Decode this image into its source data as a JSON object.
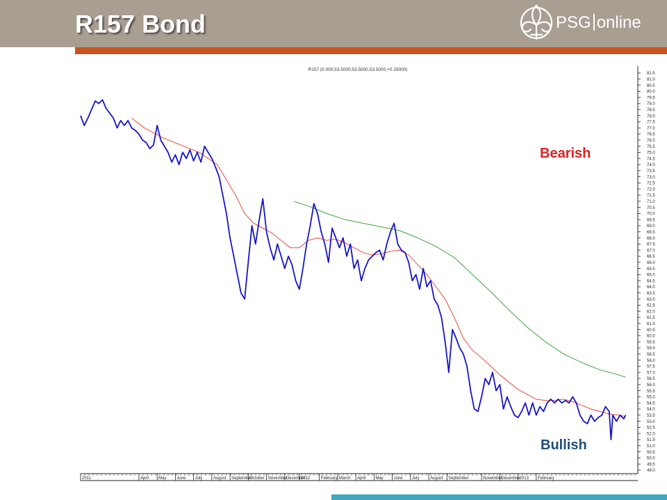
{
  "slide": {
    "title": "R157 Bond",
    "logo_brand": "PSG",
    "logo_suffix": "online"
  },
  "colors": {
    "header": "#a89e92",
    "accent": "#c8551e",
    "price": "#1414c8",
    "ma_short": "#e84a3c",
    "ma_long": "#3aa63a",
    "bearish": "#e02020",
    "bullish": "#1f4e79",
    "bottom_bar": "#3fa8c0"
  },
  "annotations": {
    "bearish": "Bearish",
    "bullish": "Bullish"
  },
  "chart_data": {
    "type": "line",
    "title": "R157 (0.000,53.5000,53.5000,53.5000,+0.25000)",
    "ylim": [
      49.0,
      81.5
    ],
    "y_ticks": [
      49.0,
      49.5,
      50.0,
      50.5,
      51.0,
      51.5,
      52.0,
      52.5,
      53.0,
      53.5,
      54.0,
      54.5,
      55.0,
      55.5,
      56.0,
      56.5,
      57.0,
      57.5,
      58.0,
      58.5,
      59.0,
      59.5,
      60.0,
      60.5,
      61.0,
      61.5,
      62.0,
      62.5,
      63.0,
      63.5,
      64.0,
      64.5,
      65.0,
      65.5,
      66.0,
      66.5,
      67.0,
      67.5,
      68.0,
      68.5,
      69.0,
      69.5,
      70.0,
      70.5,
      71.0,
      71.5,
      72.0,
      72.5,
      73.0,
      73.5,
      74.0,
      74.5,
      75.0,
      75.5,
      76.0,
      76.5,
      77.0,
      77.5,
      78.0,
      78.5,
      79.0,
      79.5,
      80.0,
      80.5,
      81.0,
      81.5
    ],
    "x_ticks": [
      {
        "label": "2011",
        "x": 0.0
      },
      {
        "label": "April",
        "x": 3.2
      },
      {
        "label": "May",
        "x": 4.2
      },
      {
        "label": "June",
        "x": 5.2
      },
      {
        "label": "July",
        "x": 6.2
      },
      {
        "label": "August",
        "x": 7.2
      },
      {
        "label": "September",
        "x": 8.2
      },
      {
        "label": "October",
        "x": 9.2
      },
      {
        "label": "November",
        "x": 10.2
      },
      {
        "label": "December",
        "x": 11.2
      },
      {
        "label": "2012",
        "x": 12.0
      },
      {
        "label": "February",
        "x": 13.1
      },
      {
        "label": "March",
        "x": 14.1
      },
      {
        "label": "April",
        "x": 15.1
      },
      {
        "label": "May",
        "x": 16.1
      },
      {
        "label": "June",
        "x": 17.1
      },
      {
        "label": "July",
        "x": 18.1
      },
      {
        "label": "August",
        "x": 19.1
      },
      {
        "label": "September",
        "x": 20.1
      },
      {
        "label": "November",
        "x": 22.0
      },
      {
        "label": "December",
        "x": 23.0
      },
      {
        "label": "2013",
        "x": 24.0
      },
      {
        "label": "February",
        "x": 25.0
      }
    ],
    "series": [
      {
        "values": [
          [
            0.0,
            78.0
          ],
          [
            0.2,
            77.2
          ],
          [
            0.4,
            77.8
          ],
          [
            0.6,
            78.5
          ],
          [
            0.8,
            79.2
          ],
          [
            1.0,
            79.0
          ],
          [
            1.2,
            79.3
          ],
          [
            1.4,
            78.6
          ],
          [
            1.6,
            78.2
          ],
          [
            1.8,
            77.8
          ],
          [
            2.0,
            77.0
          ],
          [
            2.2,
            77.6
          ],
          [
            2.4,
            77.2
          ],
          [
            2.6,
            77.6
          ],
          [
            2.8,
            77.0
          ],
          [
            3.0,
            76.8
          ],
          [
            3.2,
            76.5
          ],
          [
            3.4,
            76.0
          ],
          [
            3.6,
            75.8
          ],
          [
            3.8,
            75.3
          ],
          [
            4.0,
            75.6
          ],
          [
            4.2,
            77.2
          ],
          [
            4.4,
            76.0
          ],
          [
            4.6,
            75.5
          ],
          [
            4.8,
            75.0
          ],
          [
            5.0,
            74.2
          ],
          [
            5.2,
            74.8
          ],
          [
            5.4,
            74.0
          ],
          [
            5.6,
            75.0
          ],
          [
            5.8,
            74.5
          ],
          [
            6.0,
            75.2
          ],
          [
            6.2,
            74.3
          ],
          [
            6.4,
            75.0
          ],
          [
            6.6,
            74.2
          ],
          [
            6.8,
            75.5
          ],
          [
            7.0,
            75.0
          ],
          [
            7.2,
            74.5
          ],
          [
            7.4,
            73.8
          ],
          [
            7.6,
            73.0
          ],
          [
            7.8,
            71.5
          ],
          [
            8.0,
            70.0
          ],
          [
            8.2,
            68.0
          ],
          [
            8.4,
            66.5
          ],
          [
            8.6,
            65.0
          ],
          [
            8.8,
            63.5
          ],
          [
            9.0,
            63.0
          ],
          [
            9.2,
            66.0
          ],
          [
            9.4,
            69.0
          ],
          [
            9.6,
            67.5
          ],
          [
            9.8,
            69.5
          ],
          [
            10.0,
            71.2
          ],
          [
            10.2,
            68.5
          ],
          [
            10.4,
            67.2
          ],
          [
            10.6,
            66.2
          ],
          [
            10.8,
            67.5
          ],
          [
            11.0,
            66.5
          ],
          [
            11.2,
            65.5
          ],
          [
            11.4,
            66.5
          ],
          [
            11.6,
            65.8
          ],
          [
            11.8,
            64.5
          ],
          [
            12.0,
            63.8
          ],
          [
            12.2,
            65.5
          ],
          [
            12.4,
            67.5
          ],
          [
            12.6,
            69.0
          ],
          [
            12.8,
            70.8
          ],
          [
            13.0,
            70.0
          ],
          [
            13.2,
            68.5
          ],
          [
            13.4,
            67.5
          ],
          [
            13.6,
            66.0
          ],
          [
            13.8,
            68.8
          ],
          [
            14.0,
            68.0
          ],
          [
            14.2,
            67.2
          ],
          [
            14.4,
            68.0
          ],
          [
            14.6,
            66.5
          ],
          [
            14.8,
            67.5
          ],
          [
            15.0,
            65.5
          ],
          [
            15.2,
            66.2
          ],
          [
            15.4,
            64.5
          ],
          [
            15.6,
            65.5
          ],
          [
            15.8,
            66.2
          ],
          [
            16.0,
            66.5
          ],
          [
            16.2,
            66.8
          ],
          [
            16.4,
            67.0
          ],
          [
            16.6,
            66.2
          ],
          [
            16.8,
            67.5
          ],
          [
            17.0,
            68.5
          ],
          [
            17.2,
            69.2
          ],
          [
            17.4,
            67.5
          ],
          [
            17.6,
            67.0
          ],
          [
            17.8,
            66.8
          ],
          [
            18.0,
            66.0
          ],
          [
            18.2,
            64.5
          ],
          [
            18.4,
            65.0
          ],
          [
            18.6,
            63.8
          ],
          [
            18.8,
            65.5
          ],
          [
            19.0,
            64.0
          ],
          [
            19.2,
            64.5
          ],
          [
            19.4,
            63.0
          ],
          [
            19.6,
            62.5
          ],
          [
            19.8,
            61.5
          ],
          [
            20.0,
            59.5
          ],
          [
            20.2,
            57.0
          ],
          [
            20.4,
            60.5
          ],
          [
            20.6,
            59.8
          ],
          [
            20.8,
            59.0
          ],
          [
            21.0,
            58.5
          ],
          [
            21.2,
            57.5
          ],
          [
            21.4,
            55.5
          ],
          [
            21.6,
            54.0
          ],
          [
            21.8,
            53.8
          ],
          [
            22.0,
            55.0
          ],
          [
            22.2,
            56.5
          ],
          [
            22.4,
            56.0
          ],
          [
            22.6,
            57.0
          ],
          [
            22.8,
            55.5
          ],
          [
            23.0,
            56.0
          ],
          [
            23.2,
            54.0
          ],
          [
            23.4,
            55.0
          ],
          [
            23.6,
            54.2
          ],
          [
            23.8,
            53.5
          ],
          [
            24.0,
            53.3
          ],
          [
            24.2,
            53.8
          ],
          [
            24.4,
            54.5
          ],
          [
            24.6,
            53.5
          ],
          [
            24.8,
            54.5
          ],
          [
            25.0,
            53.5
          ],
          [
            25.2,
            54.2
          ],
          [
            25.4,
            53.8
          ],
          [
            25.6,
            54.5
          ],
          [
            25.8,
            54.8
          ],
          [
            26.0,
            54.5
          ],
          [
            26.2,
            54.8
          ],
          [
            26.4,
            54.5
          ],
          [
            26.6,
            54.7
          ],
          [
            26.8,
            54.5
          ],
          [
            27.0,
            55.0
          ],
          [
            27.2,
            54.5
          ],
          [
            27.4,
            53.5
          ],
          [
            27.6,
            53.0
          ],
          [
            27.8,
            52.8
          ],
          [
            28.0,
            53.5
          ],
          [
            28.2,
            53.0
          ],
          [
            28.4,
            53.3
          ],
          [
            28.6,
            53.5
          ],
          [
            28.8,
            54.2
          ],
          [
            29.0,
            53.8
          ],
          [
            29.1,
            51.5
          ],
          [
            29.2,
            53.5
          ],
          [
            29.4,
            53.0
          ],
          [
            29.6,
            53.5
          ],
          [
            29.8,
            53.2
          ],
          [
            29.9,
            53.5
          ]
        ]
      },
      {
        "values": [
          [
            2.8,
            77.8
          ],
          [
            3.5,
            77.0
          ],
          [
            4.5,
            76.2
          ],
          [
            5.5,
            75.6
          ],
          [
            6.5,
            75.0
          ],
          [
            7.5,
            74.0
          ],
          [
            8.5,
            71.5
          ],
          [
            9.0,
            70.0
          ],
          [
            9.5,
            69.2
          ],
          [
            10.0,
            68.8
          ],
          [
            10.5,
            68.4
          ],
          [
            11.0,
            67.8
          ],
          [
            11.5,
            67.2
          ],
          [
            12.0,
            67.2
          ],
          [
            12.5,
            67.8
          ],
          [
            13.0,
            68.0
          ],
          [
            13.5,
            67.8
          ],
          [
            14.0,
            67.9
          ],
          [
            14.5,
            67.6
          ],
          [
            15.0,
            67.2
          ],
          [
            15.5,
            66.8
          ],
          [
            16.0,
            66.6
          ],
          [
            16.5,
            66.7
          ],
          [
            17.0,
            66.9
          ],
          [
            17.5,
            67.0
          ],
          [
            18.0,
            66.6
          ],
          [
            18.5,
            65.8
          ],
          [
            19.0,
            65.0
          ],
          [
            19.5,
            64.0
          ],
          [
            20.0,
            63.0
          ],
          [
            20.5,
            61.5
          ],
          [
            21.0,
            59.8
          ],
          [
            21.5,
            58.8
          ],
          [
            22.0,
            58.2
          ],
          [
            22.5,
            57.5
          ],
          [
            23.0,
            56.8
          ],
          [
            23.5,
            56.2
          ],
          [
            24.0,
            55.6
          ],
          [
            24.5,
            55.2
          ],
          [
            25.0,
            54.8
          ],
          [
            25.5,
            54.7
          ],
          [
            26.0,
            54.7
          ],
          [
            26.5,
            54.8
          ],
          [
            27.0,
            54.6
          ],
          [
            27.5,
            54.3
          ],
          [
            28.0,
            54.0
          ],
          [
            28.5,
            53.8
          ],
          [
            29.0,
            53.6
          ],
          [
            29.5,
            53.5
          ],
          [
            29.9,
            53.4
          ]
        ]
      },
      {
        "values": [
          [
            11.7,
            71.0
          ],
          [
            12.5,
            70.6
          ],
          [
            13.5,
            70.0
          ],
          [
            14.5,
            69.5
          ],
          [
            15.5,
            69.2
          ],
          [
            16.5,
            68.9
          ],
          [
            17.5,
            68.6
          ],
          [
            18.5,
            68.0
          ],
          [
            19.5,
            67.3
          ],
          [
            20.5,
            66.4
          ],
          [
            21.5,
            65.0
          ],
          [
            22.5,
            63.6
          ],
          [
            23.5,
            62.1
          ],
          [
            24.5,
            60.7
          ],
          [
            25.5,
            59.5
          ],
          [
            26.5,
            58.5
          ],
          [
            27.5,
            57.8
          ],
          [
            28.5,
            57.2
          ],
          [
            29.5,
            56.8
          ],
          [
            29.9,
            56.6
          ]
        ]
      }
    ],
    "grid": false,
    "legend": "none"
  }
}
